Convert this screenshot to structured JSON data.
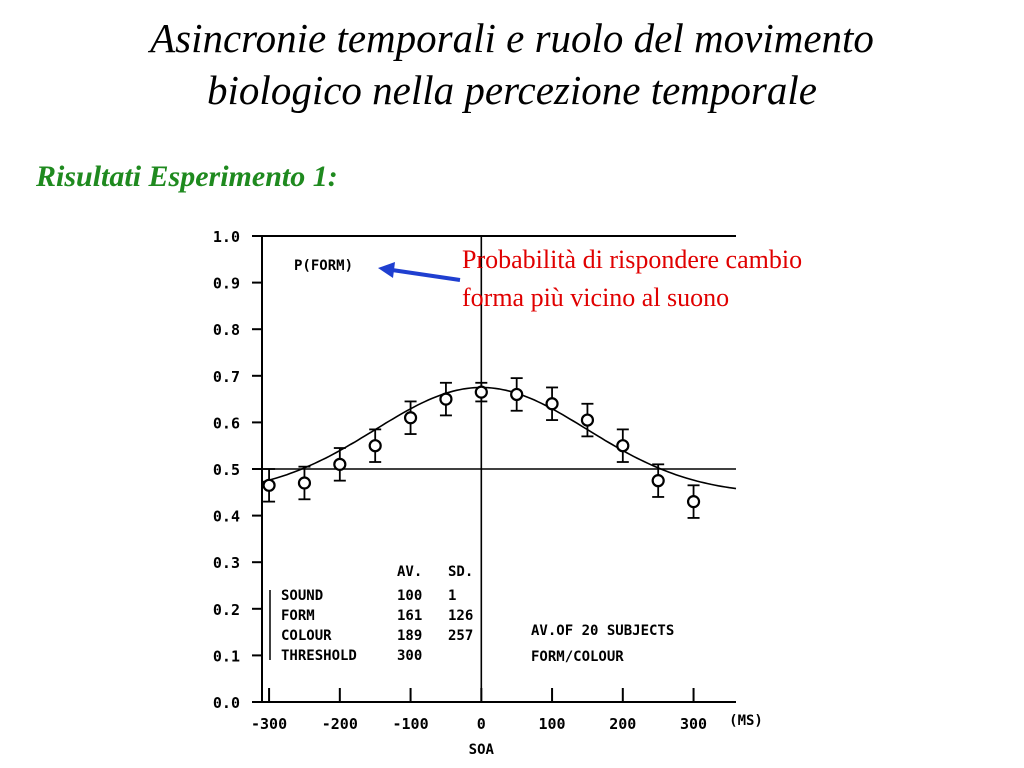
{
  "slide": {
    "title_line1": "Asincronie temporali e ruolo del movimento",
    "title_line2": "biologico nella percezione temporale",
    "subtitle": "Risultati Esperimento 1:",
    "annotation_line1": "Probabilità di rispondere cambio",
    "annotation_line2": "forma più vicino al suono",
    "colors": {
      "subtitle": "#1f8a1f",
      "annotation": "#e00000",
      "arrow": "#1f3fd0"
    }
  },
  "chart_data": {
    "type": "scatter",
    "ylabel_inner": "P(FORM)",
    "xlabel": "SOA",
    "x_unit": "(MS)",
    "xlim": [
      -310,
      360
    ],
    "ylim": [
      0,
      1
    ],
    "x_ticks": [
      -300,
      -200,
      -100,
      0,
      100,
      200,
      300
    ],
    "x_tick_labels": [
      "-300",
      "-200",
      "-100",
      "0",
      "100",
      "200",
      "300"
    ],
    "y_ticks": [
      0,
      0.1,
      0.2,
      0.3,
      0.4,
      0.5,
      0.6,
      0.7,
      0.8,
      0.9,
      1.0
    ],
    "y_tick_labels": [
      "0.0",
      "0.1",
      "0.2",
      "0.3",
      "0.4",
      "0.5",
      "0.6",
      "0.7",
      "0.8",
      "0.9",
      "1.0"
    ],
    "reference_lines": {
      "x": 0,
      "y": 0.5
    },
    "points": [
      {
        "x": -300,
        "y": 0.465,
        "err": 0.035
      },
      {
        "x": -250,
        "y": 0.47,
        "err": 0.035
      },
      {
        "x": -200,
        "y": 0.51,
        "err": 0.035
      },
      {
        "x": -150,
        "y": 0.55,
        "err": 0.035
      },
      {
        "x": -100,
        "y": 0.61,
        "err": 0.035
      },
      {
        "x": -50,
        "y": 0.65,
        "err": 0.035
      },
      {
        "x": 0,
        "y": 0.665,
        "err": 0.02
      },
      {
        "x": 50,
        "y": 0.66,
        "err": 0.035
      },
      {
        "x": 100,
        "y": 0.64,
        "err": 0.035
      },
      {
        "x": 150,
        "y": 0.605,
        "err": 0.035
      },
      {
        "x": 200,
        "y": 0.55,
        "err": 0.035
      },
      {
        "x": 250,
        "y": 0.475,
        "err": 0.035
      },
      {
        "x": 300,
        "y": 0.43,
        "err": 0.035
      }
    ],
    "fit_curve": {
      "type": "gaussian",
      "baseline": 0.445,
      "amplitude": 0.23,
      "center": 0,
      "sigma": 150
    },
    "stats_table": {
      "headers": [
        "AV.",
        "SD."
      ],
      "rows": [
        {
          "label": "SOUND",
          "av": "100",
          "sd": "1"
        },
        {
          "label": "FORM",
          "av": "161",
          "sd": "126"
        },
        {
          "label": "COLOUR",
          "av": "189",
          "sd": "257"
        },
        {
          "label": "THRESHOLD",
          "av": "300",
          "sd": ""
        }
      ]
    },
    "notes": [
      "AV.OF 20 SUBJECTS",
      "FORM/COLOUR"
    ]
  }
}
